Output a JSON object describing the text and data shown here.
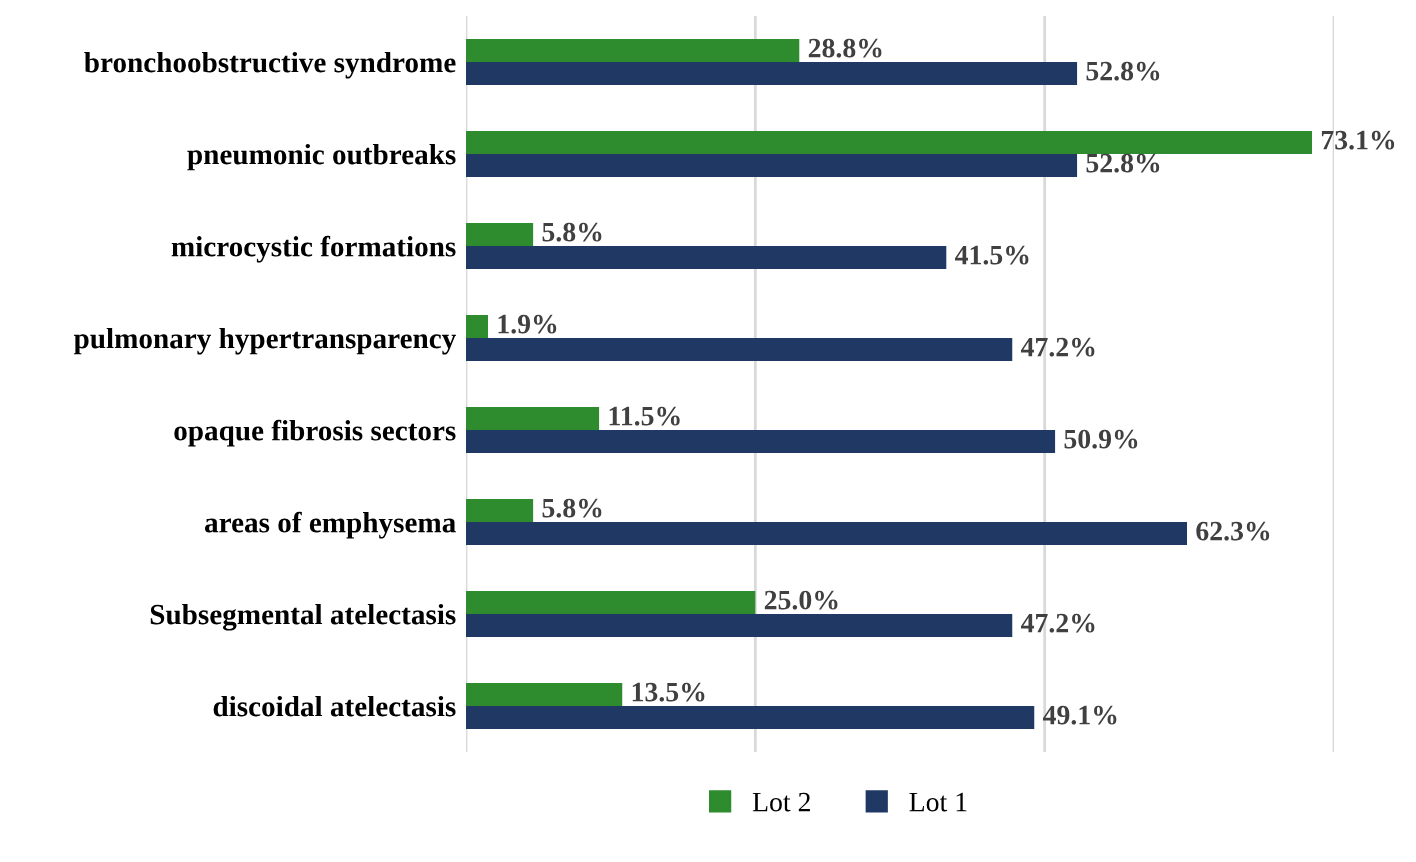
{
  "chart_data": {
    "type": "bar",
    "orientation": "horizontal",
    "categories": [
      "bronchoobstructive syndrome",
      "pneumonic outbreaks",
      "microcystic formations",
      "pulmonary hypertransparency",
      "opaque fibrosis sectors",
      "areas of emphysema",
      "Subsegmental atelectasis",
      "discoidal atelectasis"
    ],
    "series": [
      {
        "name": "Lot 2",
        "color": "#2e8b2e",
        "values": [
          28.8,
          73.1,
          5.8,
          1.9,
          11.5,
          5.8,
          25.0,
          13.5
        ],
        "value_labels": [
          "28.8%",
          "73.1%",
          "5.8%",
          "1.9%",
          "11.5%",
          "5.8%",
          "25.0%",
          "13.5%"
        ]
      },
      {
        "name": "Lot 1",
        "color": "#1f3864",
        "values": [
          52.8,
          52.8,
          41.5,
          47.2,
          50.9,
          62.3,
          47.2,
          49.1
        ],
        "value_labels": [
          "52.8%",
          "52.8%",
          "41.5%",
          "47.2%",
          "50.9%",
          "62.3%",
          "47.2%",
          "49.1%"
        ]
      }
    ],
    "xlim": [
      0,
      75
    ],
    "xticks": [
      {
        "value": 0,
        "label": null
      },
      {
        "value": 25,
        "label": null
      },
      {
        "value": 50,
        "label": null
      },
      {
        "value": 75,
        "label": null
      }
    ],
    "tick_labels": "y",
    "grid": "x",
    "legend": "bottom"
  }
}
